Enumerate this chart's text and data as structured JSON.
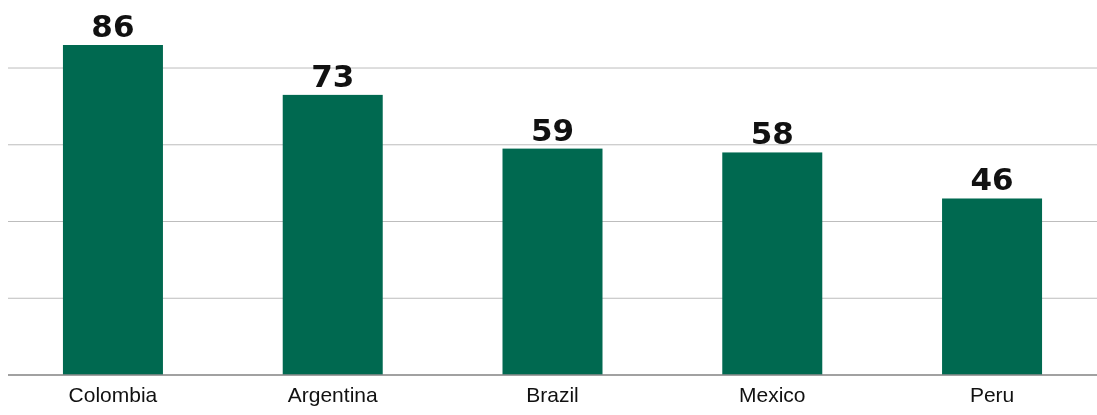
{
  "chart_data": {
    "type": "bar",
    "categories": [
      "Colombia",
      "Argentina",
      "Brazil",
      "Mexico",
      "Peru"
    ],
    "values": [
      86,
      73,
      59,
      58,
      46
    ],
    "color": "#006950",
    "yticks": [
      {
        "value": 0,
        "label": null
      },
      {
        "value": 20,
        "label": null
      },
      {
        "value": 40,
        "label": null
      },
      {
        "value": 60,
        "label": null
      },
      {
        "value": 80,
        "label": null
      }
    ],
    "grid": "y",
    "tick_labels": "x",
    "data_labels": true
  }
}
